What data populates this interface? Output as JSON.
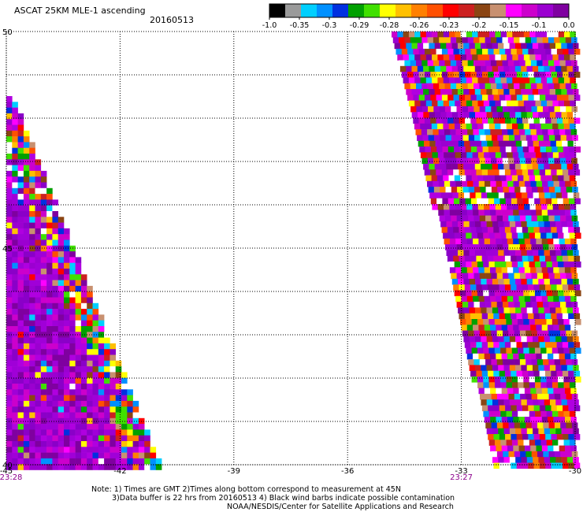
{
  "header": {
    "title": "ASCAT 25KM MLE-1 ascending",
    "date": "20160513"
  },
  "colorbar": {
    "labels": [
      "-1.0",
      "-0.35",
      "-0.3",
      "-0.29",
      "-0.28",
      "-0.26",
      "-0.23",
      "-0.2",
      "-0.15",
      "-0.1",
      "0.0"
    ],
    "colors": [
      "#000000",
      "#9a9a9a",
      "#00cfff",
      "#0090ff",
      "#0030e0",
      "#00a000",
      "#40e000",
      "#ffff00",
      "#ffc000",
      "#ff8000",
      "#ff5000",
      "#ff0000",
      "#cc2020",
      "#8b4513",
      "#c89070",
      "#ff00ff",
      "#cc00cc",
      "#9b00d0",
      "#7f00a0"
    ]
  },
  "chart_data": {
    "type": "heatmap",
    "xlim": [
      -45,
      -30
    ],
    "ylim": [
      40,
      50
    ],
    "x_ticks": [
      -45,
      -42,
      -39,
      -36,
      -33,
      -30
    ],
    "x_tick_labels": [
      "-45",
      "-42",
      "-39",
      "-36",
      "-33",
      "-30"
    ],
    "y_ticks": [
      40,
      45,
      50
    ],
    "y_tick_labels": [
      "40",
      "45",
      "50"
    ],
    "grid": true,
    "swaths": [
      {
        "time": "23:28",
        "lon": -45
      },
      {
        "time": "23:27",
        "lon": -33
      }
    ]
  },
  "notes": {
    "line1": "Note: 1) Times are GMT 2)Times along bottom correspond to measurement at 45N",
    "line2": "3)Data buffer is 22 hrs from 20160513 4) Black wind barbs indicate possible contamination",
    "line3": "NOAA/NESDIS/Center for Satellite Applications and Research"
  }
}
